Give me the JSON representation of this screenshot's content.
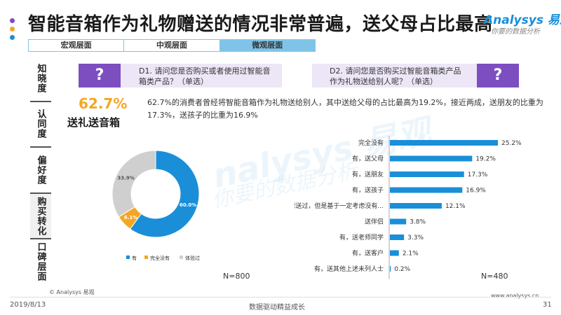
{
  "title": "智能音箱作为礼物赠送的情况非常普遍，送父母占比最高",
  "logo": {
    "name": "Analysys 易观",
    "slogan": "你要的数据分析"
  },
  "tabs": [
    "宏观层面",
    "中观层面",
    "微观层面"
  ],
  "active_tab": 2,
  "sidenav": [
    "知晓度",
    "认同度",
    "偏好度",
    "购买转化",
    "口碑层面"
  ],
  "active_sidenav": 3,
  "q1": {
    "mark": "?",
    "text": "D1. 请问您是否购买或者使用过智能音箱类产品？（单选）"
  },
  "q2": {
    "mark": "?",
    "text": "D2. 请问您是否购买过智能音箱类产品作为礼物送给别人呢？（单选）"
  },
  "highlight": {
    "value": "62.7%",
    "label": "送礼送音箱"
  },
  "summary": "62.7%的消费者曾经将智能音箱作为礼物送给别人，其中送给父母的占比最高为19.2%，接近两成，送朋友的比重为17.3%，送孩子的比重为16.9%",
  "watermark": {
    "main": "nalysys 易观",
    "sub": "你要的数据分析"
  },
  "n_left": "N=800",
  "n_right": "N=480",
  "colors": {
    "accent_purple": "#7d4ec0",
    "blue": "#1a8fd8",
    "orange": "#f5a623",
    "gray": "#cfcfcf"
  },
  "chart_data": [
    {
      "type": "pie",
      "style": "donut",
      "labels": [
        "有",
        "完全没有",
        "体验过"
      ],
      "values": [
        60.0,
        6.1,
        33.9
      ],
      "value_labels": [
        "60.0%",
        "6.1%",
        "33.9%"
      ],
      "colors": [
        "#1a8fd8",
        "#f5a623",
        "#cfcfcf"
      ],
      "legend_position": "bottom"
    },
    {
      "type": "bar",
      "orientation": "horizontal",
      "categories": [
        "完全没有",
        "有，送父母",
        "有，送朋友",
        "有，送孩子",
        "想送过，但是基于一定考虑没有...",
        "送伴侣",
        "有，送老师同学",
        "有，送客户",
        "有，送其他上述未列人士"
      ],
      "values": [
        25.2,
        19.2,
        17.3,
        16.9,
        12.1,
        3.8,
        3.3,
        2.1,
        0.2
      ],
      "value_labels": [
        "25.2%",
        "19.2%",
        "17.3%",
        "16.9%",
        "12.1%",
        "3.8%",
        "3.3%",
        "2.1%",
        "0.2%"
      ],
      "color": "#1a8fd8",
      "xlim": [
        0,
        27
      ]
    }
  ],
  "footer": {
    "copyright": "© Analysys 易观",
    "url": "www.analysys.cn",
    "date": "2019/8/13",
    "center": "数据驱动精益成长",
    "page": "31"
  }
}
